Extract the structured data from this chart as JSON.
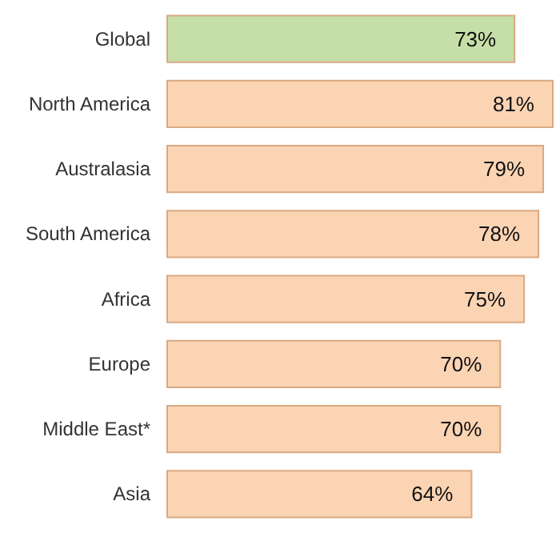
{
  "chart_data": {
    "type": "bar",
    "orientation": "horizontal",
    "categories": [
      "Global",
      "North America",
      "Australasia",
      "South America",
      "Africa",
      "Europe",
      "Middle East*",
      "Asia"
    ],
    "values": [
      73,
      81,
      79,
      78,
      75,
      70,
      70,
      64
    ],
    "value_labels": [
      "73%",
      "81%",
      "79%",
      "78%",
      "75%",
      "70%",
      "70%",
      "64%"
    ],
    "colors": [
      "#c6dfa8",
      "#fbd4b4",
      "#fbd4b4",
      "#fbd4b4",
      "#fbd4b4",
      "#fbd4b4",
      "#fbd4b4",
      "#fbd4b4"
    ]
  }
}
